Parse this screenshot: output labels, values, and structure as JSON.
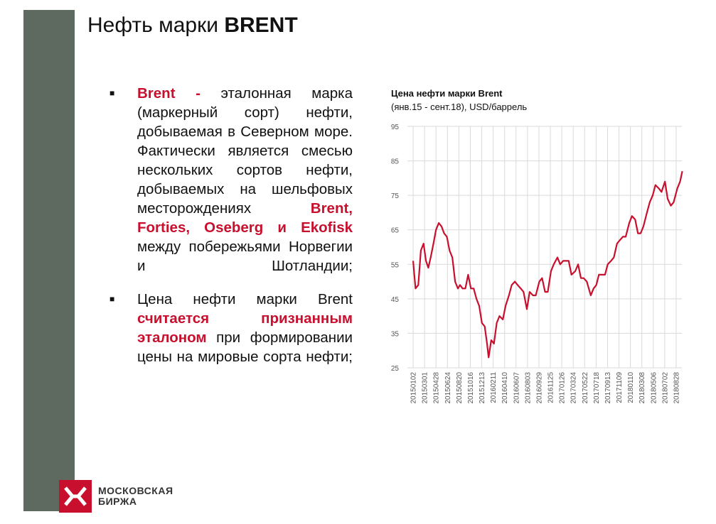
{
  "slide": {
    "title_plain": "Нефть марки",
    "title_bold": "BRENT"
  },
  "bullets": {
    "b1": {
      "red1": "Brent -",
      "text1": " эталонная марка (маркерный сорт) нефти, добываемая в Северном море. Фактически является смесью нескольких сортов нефти, добываемых на шельфовых месторождениях",
      "red2": "Brent, Forties, Oseberg и Ekofisk",
      "text2": "между побережьями Норвегии и Шотландии;"
    },
    "b2": {
      "text1": "Цена нефти марки Brent",
      "red1": "считается признанным эталоном",
      "text2": "при формировании цены на мировые сорта нефти;"
    }
  },
  "logo": {
    "line1": "МОСКОВСКАЯ",
    "line2": "БИРЖА"
  },
  "colors": {
    "accent": "#c8102e",
    "sidebar": "#5e6a5f",
    "gridline": "#d9d9d9"
  },
  "chart_data": {
    "type": "line",
    "title": "Цена нефти марки Brent",
    "subtitle": "(янв.15 - сент.18), USD/баррель",
    "ylim": [
      25,
      95
    ],
    "yticks": [
      25,
      35,
      45,
      55,
      65,
      75,
      85,
      95
    ],
    "xticks": [
      "20150102",
      "20150301",
      "20150428",
      "20150624",
      "20150820",
      "20151016",
      "20151213",
      "20160211",
      "20160410",
      "20160607",
      "20160803",
      "20160929",
      "20161125",
      "20170126",
      "20170324",
      "20170522",
      "20170718",
      "20170913",
      "20171109",
      "20180110",
      "20180308",
      "20180506",
      "20180702",
      "20180828"
    ],
    "grid": true,
    "series": [
      {
        "color": "#c8102e",
        "x": [
          "20150102",
          "20150114",
          "20150128",
          "20150210",
          "20150224",
          "20150308",
          "20150320",
          "20150401",
          "20150415",
          "20150428",
          "20150512",
          "20150526",
          "20150608",
          "20150622",
          "20150706",
          "20150720",
          "20150803",
          "20150817",
          "20150828",
          "20150910",
          "20150924",
          "20151008",
          "20151022",
          "20151105",
          "20151119",
          "20151203",
          "20151217",
          "20151231",
          "20160112",
          "20160120",
          "20160202",
          "20160216",
          "20160301",
          "20160315",
          "20160401",
          "20160415",
          "20160502",
          "20160516",
          "20160601",
          "20160615",
          "20160701",
          "20160715",
          "20160801",
          "20160815",
          "20160901",
          "20160915",
          "20161003",
          "20161017",
          "20161101",
          "20161115",
          "20161201",
          "20161215",
          "20170103",
          "20170117",
          "20170201",
          "20170215",
          "20170301",
          "20170315",
          "20170403",
          "20170418",
          "20170502",
          "20170516",
          "20170601",
          "20170621",
          "20170705",
          "20170719",
          "20170801",
          "20170815",
          "20170901",
          "20170915",
          "20171002",
          "20171016",
          "20171101",
          "20171115",
          "20171201",
          "20171215",
          "20180102",
          "20180116",
          "20180201",
          "20180215",
          "20180301",
          "20180315",
          "20180402",
          "20180416",
          "20180501",
          "20180515",
          "20180601",
          "20180615",
          "20180702",
          "20180716",
          "20180801",
          "20180815",
          "20180903",
          "20180917",
          "20180928"
        ],
        "values": [
          56,
          48,
          49,
          59,
          61,
          56,
          54,
          57,
          61,
          65,
          67,
          66,
          64,
          63,
          59,
          57,
          50,
          48,
          49,
          48,
          48,
          52,
          48,
          48,
          45,
          43,
          38,
          37,
          32,
          28,
          33,
          32,
          38,
          40,
          39,
          43,
          46,
          49,
          50,
          49,
          48,
          47,
          42,
          47,
          46,
          46,
          50,
          51,
          47,
          47,
          53,
          55,
          57,
          55,
          56,
          56,
          56,
          52,
          53,
          55,
          51,
          51,
          50,
          46,
          48,
          49,
          52,
          52,
          52,
          55,
          56,
          57,
          61,
          62,
          63,
          63,
          67,
          69,
          68,
          64,
          64,
          66,
          70,
          73,
          75,
          78,
          77,
          76,
          79,
          74,
          72,
          73,
          77,
          79,
          82
        ]
      }
    ]
  }
}
